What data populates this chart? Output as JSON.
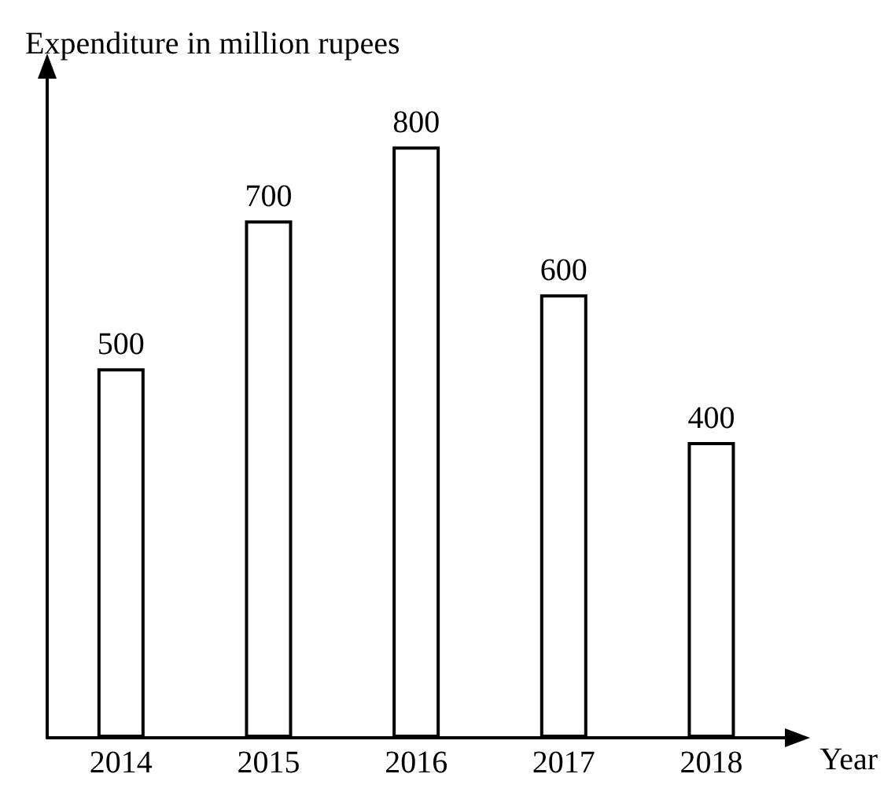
{
  "chart_data": {
    "type": "bar",
    "ylabel": "Expenditure in million rupees",
    "xlabel": "Year",
    "categories": [
      "2014",
      "2015",
      "2016",
      "2017",
      "2018"
    ],
    "values": [
      500,
      700,
      800,
      600,
      400
    ],
    "color": "#ffffff",
    "data_labels": true
  }
}
